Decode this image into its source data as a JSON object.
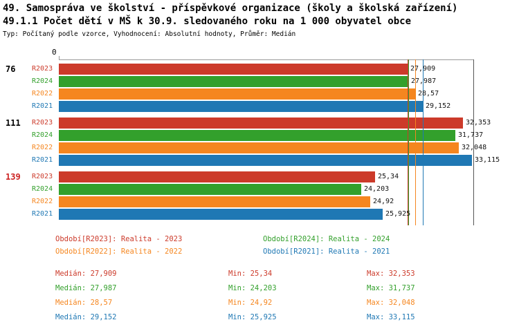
{
  "title": {
    "line1": "49. Samospráva ve školství - příspěvkové organizace (školy a školská zařízení)",
    "line2": "49.1.1 Počet dětí v MŠ k 30.9. sledovaného roku na 1 000 obyvatel obce",
    "line3": "Typ: Počítaný podle vzorce, Vyhodnocení: Absolutní hodnoty, Průměr: Medián"
  },
  "chart_data": {
    "type": "bar",
    "orientation": "horizontal",
    "grid": "off",
    "axis": {
      "min": 0,
      "max": 33.2,
      "zero_label": "0"
    },
    "series": [
      {
        "name": "R2023",
        "color": "#cc3a2a",
        "legend_period": "Období[R2023]",
        "legend_desc": "Realita - 2023",
        "median": 27.909,
        "median_display": "27,909",
        "min": 25.34,
        "min_display": "25,34",
        "max": 32.353,
        "max_display": "32,353"
      },
      {
        "name": "R2024",
        "color": "#33a02c",
        "legend_period": "Období[R2024]",
        "legend_desc": "Realita - 2024",
        "median": 27.987,
        "median_display": "27,987",
        "min": 24.203,
        "min_display": "24,203",
        "max": 31.737,
        "max_display": "31,737"
      },
      {
        "name": "R2022",
        "color": "#f5861f",
        "legend_period": "Období[R2022]",
        "legend_desc": "Realita - 2022",
        "median": 28.57,
        "median_display": "28,57",
        "min": 24.92,
        "min_display": "24,92",
        "max": 32.048,
        "max_display": "32,048"
      },
      {
        "name": "R2021",
        "color": "#1f78b4",
        "legend_period": "Období[R2021]",
        "legend_desc": "Realita - 2021",
        "median": 29.152,
        "median_display": "29,152",
        "min": 25.925,
        "min_display": "25,925",
        "max": 33.115,
        "max_display": "33,115"
      }
    ],
    "groups": [
      {
        "label": "76",
        "label_color": "#000000",
        "bars": [
          {
            "series": "R2023",
            "value": 27.909,
            "display": "27,909"
          },
          {
            "series": "R2024",
            "value": 27.987,
            "display": "27,987"
          },
          {
            "series": "R2022",
            "value": 28.57,
            "display": "28,57"
          },
          {
            "series": "R2021",
            "value": 29.152,
            "display": "29,152"
          }
        ]
      },
      {
        "label": "111",
        "label_color": "#000000",
        "bars": [
          {
            "series": "R2023",
            "value": 32.353,
            "display": "32,353"
          },
          {
            "series": "R2024",
            "value": 31.737,
            "display": "31,737"
          },
          {
            "series": "R2022",
            "value": 32.048,
            "display": "32,048"
          },
          {
            "series": "R2021",
            "value": 33.115,
            "display": "33,115"
          }
        ]
      },
      {
        "label": "139",
        "label_color": "#cc2222",
        "bars": [
          {
            "series": "R2023",
            "value": 25.34,
            "display": "25,34"
          },
          {
            "series": "R2024",
            "value": 24.203,
            "display": "24,203"
          },
          {
            "series": "R2022",
            "value": 24.92,
            "display": "24,92"
          },
          {
            "series": "R2021",
            "value": 25.925,
            "display": "25,925"
          }
        ]
      }
    ],
    "median_lines": [
      "R2023",
      "R2024",
      "R2022",
      "R2021"
    ],
    "legend_rows": [
      [
        "R2023",
        "R2024"
      ],
      [
        "R2022",
        "R2021"
      ]
    ],
    "stats_order": [
      "R2023",
      "R2024",
      "R2022",
      "R2021"
    ],
    "stats_labels": {
      "median": "Medián",
      "min": "Min",
      "max": "Max"
    }
  }
}
